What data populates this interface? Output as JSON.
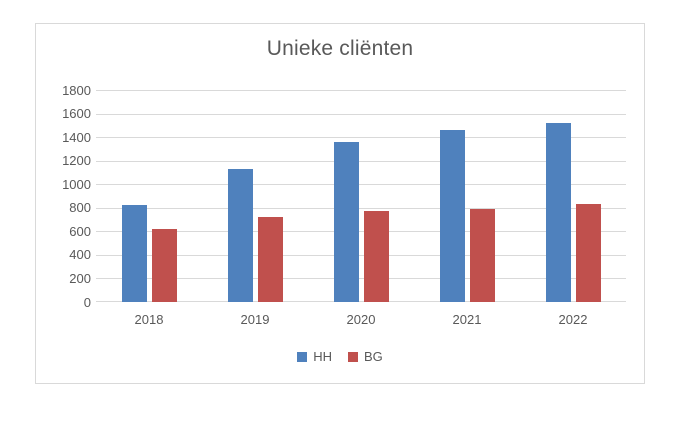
{
  "chart_data": {
    "type": "bar",
    "title": "Unieke cliënten",
    "categories": [
      "2018",
      "2019",
      "2020",
      "2021",
      "2022"
    ],
    "series": [
      {
        "name": "HH",
        "color": "#4F81BD",
        "values": [
          820,
          1130,
          1360,
          1460,
          1520
        ]
      },
      {
        "name": "BG",
        "color": "#C0504D",
        "values": [
          620,
          720,
          770,
          790,
          830
        ]
      }
    ],
    "xlabel": "",
    "ylabel": "",
    "ylim": [
      0,
      1800
    ],
    "ytick_step": 200,
    "ytick_labels": [
      "0",
      "200",
      "400",
      "600",
      "800",
      "1000",
      "1200",
      "1400",
      "1600",
      "1800"
    ],
    "grid": true,
    "legend_position": "bottom",
    "style": {
      "grid_color": "#D9D9D9",
      "frame_border_color": "#D9D9D9",
      "text_color": "#595959",
      "background": "#FFFFFF"
    }
  }
}
